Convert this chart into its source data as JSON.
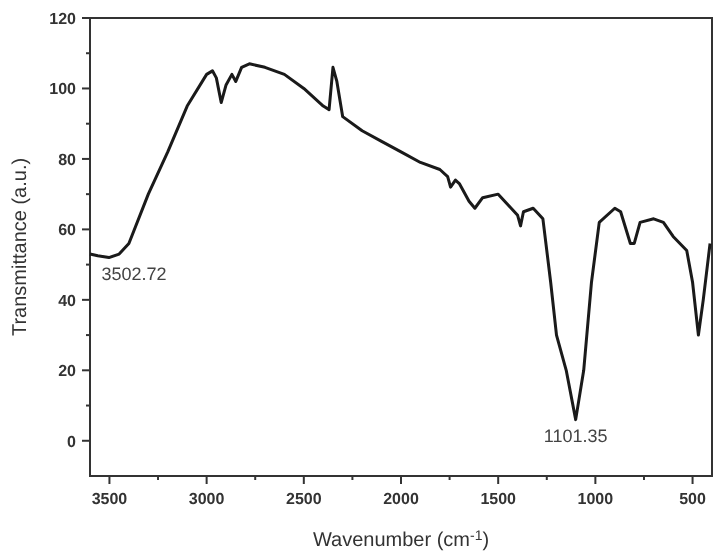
{
  "chart_data": {
    "type": "line",
    "xlabel": "Wavenumber (cm$^{-1}$)",
    "ylabel": "Transmittance (a.u.)",
    "xlim": [
      3600,
      400
    ],
    "ylim": [
      -10,
      120
    ],
    "xticks": [
      3500,
      {
        "value": 3250,
        "label": null
      },
      3000,
      {
        "value": 2750,
        "label": null
      },
      2500,
      {
        "value": 2250,
        "label": null
      },
      2000,
      {
        "value": 1750,
        "label": null
      },
      1500,
      {
        "value": 1250,
        "label": null
      },
      1000,
      {
        "value": 750,
        "label": null
      },
      500
    ],
    "yticks": [
      0,
      {
        "value": 10,
        "label": null
      },
      20,
      {
        "value": 30,
        "label": null
      },
      40,
      {
        "value": 50,
        "label": null
      },
      60,
      {
        "value": 70,
        "label": null
      },
      80,
      {
        "value": 90,
        "label": null
      },
      100,
      {
        "value": 110,
        "label": null
      },
      120
    ],
    "grid": false,
    "marker": "none",
    "line_style": "solid",
    "series": [
      {
        "color": "#1a1a1a",
        "x": [
          3600,
          3560,
          3502.72,
          3450,
          3400,
          3300,
          3200,
          3100,
          3000,
          2970,
          2950,
          2925,
          2900,
          2870,
          2850,
          2820,
          2780,
          2700,
          2600,
          2500,
          2400,
          2370,
          2350,
          2340,
          2330,
          2300,
          2200,
          2100,
          2000,
          1900,
          1800,
          1760,
          1745,
          1720,
          1700,
          1650,
          1620,
          1580,
          1500,
          1450,
          1400,
          1385,
          1370,
          1320,
          1270,
          1230,
          1200,
          1150,
          1101.35,
          1060,
          1020,
          980,
          900,
          870,
          820,
          800,
          770,
          700,
          650,
          600,
          530,
          500,
          470,
          445,
          410
        ],
        "values": [
          53,
          52.5,
          52,
          53,
          56,
          70,
          82,
          95,
          104,
          105,
          103,
          96,
          101,
          104,
          102,
          106,
          107,
          106,
          104,
          100,
          95,
          94,
          106,
          104,
          102,
          92,
          88,
          85,
          82,
          79,
          77,
          75,
          72,
          74,
          73,
          68,
          66,
          69,
          70,
          67,
          64,
          61,
          65,
          66,
          63,
          45,
          30,
          20,
          6,
          20,
          45,
          62,
          66,
          65,
          56,
          56,
          62,
          63,
          62,
          58,
          54,
          45,
          30,
          40,
          56
        ]
      }
    ],
    "annotations": [
      {
        "text": "3502.72",
        "x": 3502.72,
        "y": 52
      },
      {
        "text": "1101.35",
        "x": 1101.35,
        "y": 6
      }
    ]
  }
}
